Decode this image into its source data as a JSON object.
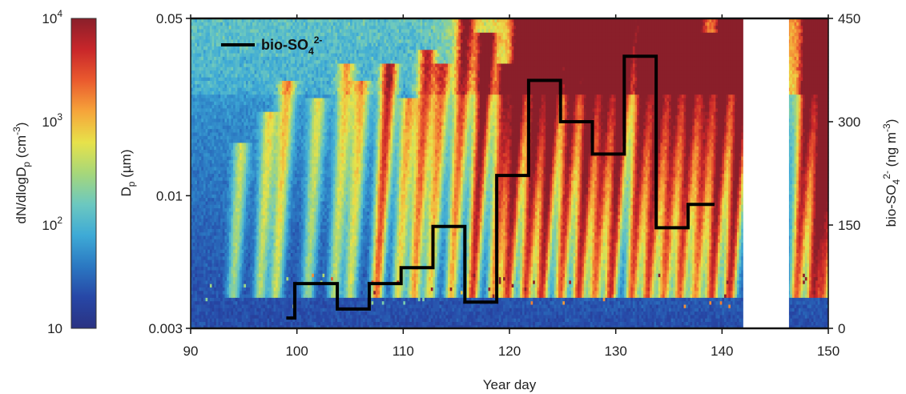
{
  "chart_data": {
    "type": "heatmap",
    "x": {
      "label": "Year day",
      "ticks": [
        "90",
        "100",
        "110",
        "120",
        "130",
        "140",
        "150"
      ],
      "lim": [
        90,
        150
      ]
    },
    "y_left": {
      "label": "D",
      "label_sub": "p",
      "label_unit": " (µm)",
      "scale": "log",
      "lim": [
        0.003,
        0.05
      ],
      "ticks": [
        "0.003",
        "0.01",
        "0.05"
      ]
    },
    "y_right": {
      "label": "bio-SO",
      "label_sub": "4",
      "label_sup": "2-",
      "label_unit_a": " (ng m",
      "label_unit_sup": "-3",
      "label_unit_b": ")",
      "lim": [
        0,
        450
      ],
      "ticks": [
        "0",
        "150",
        "300",
        "450"
      ]
    },
    "colorbar": {
      "label_a": "dN/dlogD",
      "label_sub": "p",
      "label_b": "  (cm",
      "label_sup": "-3",
      "label_c": ")",
      "scale": "log",
      "lim": [
        10,
        10000
      ],
      "tick_labels": [
        {
          "base": "10",
          "exp": "4",
          "value": 10000
        },
        {
          "base": "10",
          "exp": "3",
          "value": 1000
        },
        {
          "base": "10",
          "exp": "2",
          "value": 100
        },
        {
          "base": "10",
          "exp": "",
          "value": 10
        }
      ],
      "colors": [
        "#2a3282",
        "#2747a6",
        "#2b78c2",
        "#3eaad6",
        "#6cc8c0",
        "#a6d77a",
        "#e7e24a",
        "#f6a53a",
        "#ea5a2e",
        "#c8262a",
        "#8a1f2a"
      ]
    },
    "data_gap": [
      142,
      146.3
    ],
    "legend": {
      "label": "bio-SO",
      "label_sub": "4",
      "label_sup": "2-",
      "position": "top-left"
    },
    "series": [
      {
        "name": "bio-SO42-",
        "type": "step",
        "steps": [
          {
            "x0": 99,
            "x1": 99.8,
            "y": 15
          },
          {
            "x0": 99.8,
            "x1": 103.8,
            "y": 65
          },
          {
            "x0": 103.8,
            "x1": 106.8,
            "y": 28
          },
          {
            "x0": 106.8,
            "x1": 109.8,
            "y": 65
          },
          {
            "x0": 109.8,
            "x1": 112.8,
            "y": 88
          },
          {
            "x0": 112.8,
            "x1": 115.8,
            "y": 148
          },
          {
            "x0": 115.8,
            "x1": 118.8,
            "y": 38
          },
          {
            "x0": 118.8,
            "x1": 121.8,
            "y": 222
          },
          {
            "x0": 121.8,
            "x1": 124.8,
            "y": 360
          },
          {
            "x0": 124.8,
            "x1": 127.8,
            "y": 300
          },
          {
            "x0": 127.8,
            "x1": 130.8,
            "y": 253
          },
          {
            "x0": 130.8,
            "x1": 133.8,
            "y": 395
          },
          {
            "x0": 133.8,
            "x1": 136.8,
            "y": 146
          },
          {
            "x0": 136.8,
            "x1": 139.3,
            "y": 180
          }
        ]
      }
    ],
    "intensity_profile": {
      "comment_free_note": "",
      "bursts": [
        {
          "day": 94,
          "strength": 0.45,
          "reach": 0.55
        },
        {
          "day": 96.5,
          "strength": 0.5,
          "reach": 0.65
        },
        {
          "day": 98,
          "strength": 0.55,
          "reach": 0.75
        },
        {
          "day": 101,
          "strength": 0.45,
          "reach": 0.7
        },
        {
          "day": 103.5,
          "strength": 0.5,
          "reach": 0.8
        },
        {
          "day": 105,
          "strength": 0.55,
          "reach": 0.75
        },
        {
          "day": 107.5,
          "strength": 0.85,
          "reach": 0.8
        },
        {
          "day": 109.5,
          "strength": 0.6,
          "reach": 0.7
        },
        {
          "day": 111,
          "strength": 0.75,
          "reach": 0.85
        },
        {
          "day": 112.5,
          "strength": 0.65,
          "reach": 0.8
        },
        {
          "day": 114.5,
          "strength": 0.7,
          "reach": 0.95
        },
        {
          "day": 116.5,
          "strength": 0.95,
          "reach": 0.9
        },
        {
          "day": 118.5,
          "strength": 0.75,
          "reach": 0.8
        },
        {
          "day": 119.8,
          "strength": 0.95,
          "reach": 1.0
        },
        {
          "day": 121.5,
          "strength": 0.9,
          "reach": 1.0
        },
        {
          "day": 123,
          "strength": 0.98,
          "reach": 1.0
        },
        {
          "day": 124.8,
          "strength": 0.85,
          "reach": 1.0
        },
        {
          "day": 126.5,
          "strength": 0.95,
          "reach": 1.0
        },
        {
          "day": 128,
          "strength": 0.8,
          "reach": 0.95
        },
        {
          "day": 129.5,
          "strength": 0.95,
          "reach": 1.0
        },
        {
          "day": 131.5,
          "strength": 0.85,
          "reach": 1.0
        },
        {
          "day": 133,
          "strength": 0.9,
          "reach": 1.0
        },
        {
          "day": 134.5,
          "strength": 0.8,
          "reach": 0.95
        },
        {
          "day": 136,
          "strength": 0.85,
          "reach": 0.95
        },
        {
          "day": 137.5,
          "strength": 0.75,
          "reach": 0.9
        },
        {
          "day": 139,
          "strength": 0.95,
          "reach": 1.0
        },
        {
          "day": 140.7,
          "strength": 0.98,
          "reach": 1.0
        },
        {
          "day": 147,
          "strength": 0.85,
          "reach": 1.0
        },
        {
          "day": 148.5,
          "strength": 0.95,
          "reach": 1.0
        },
        {
          "day": 149.5,
          "strength": 0.8,
          "reach": 0.95
        }
      ]
    }
  }
}
